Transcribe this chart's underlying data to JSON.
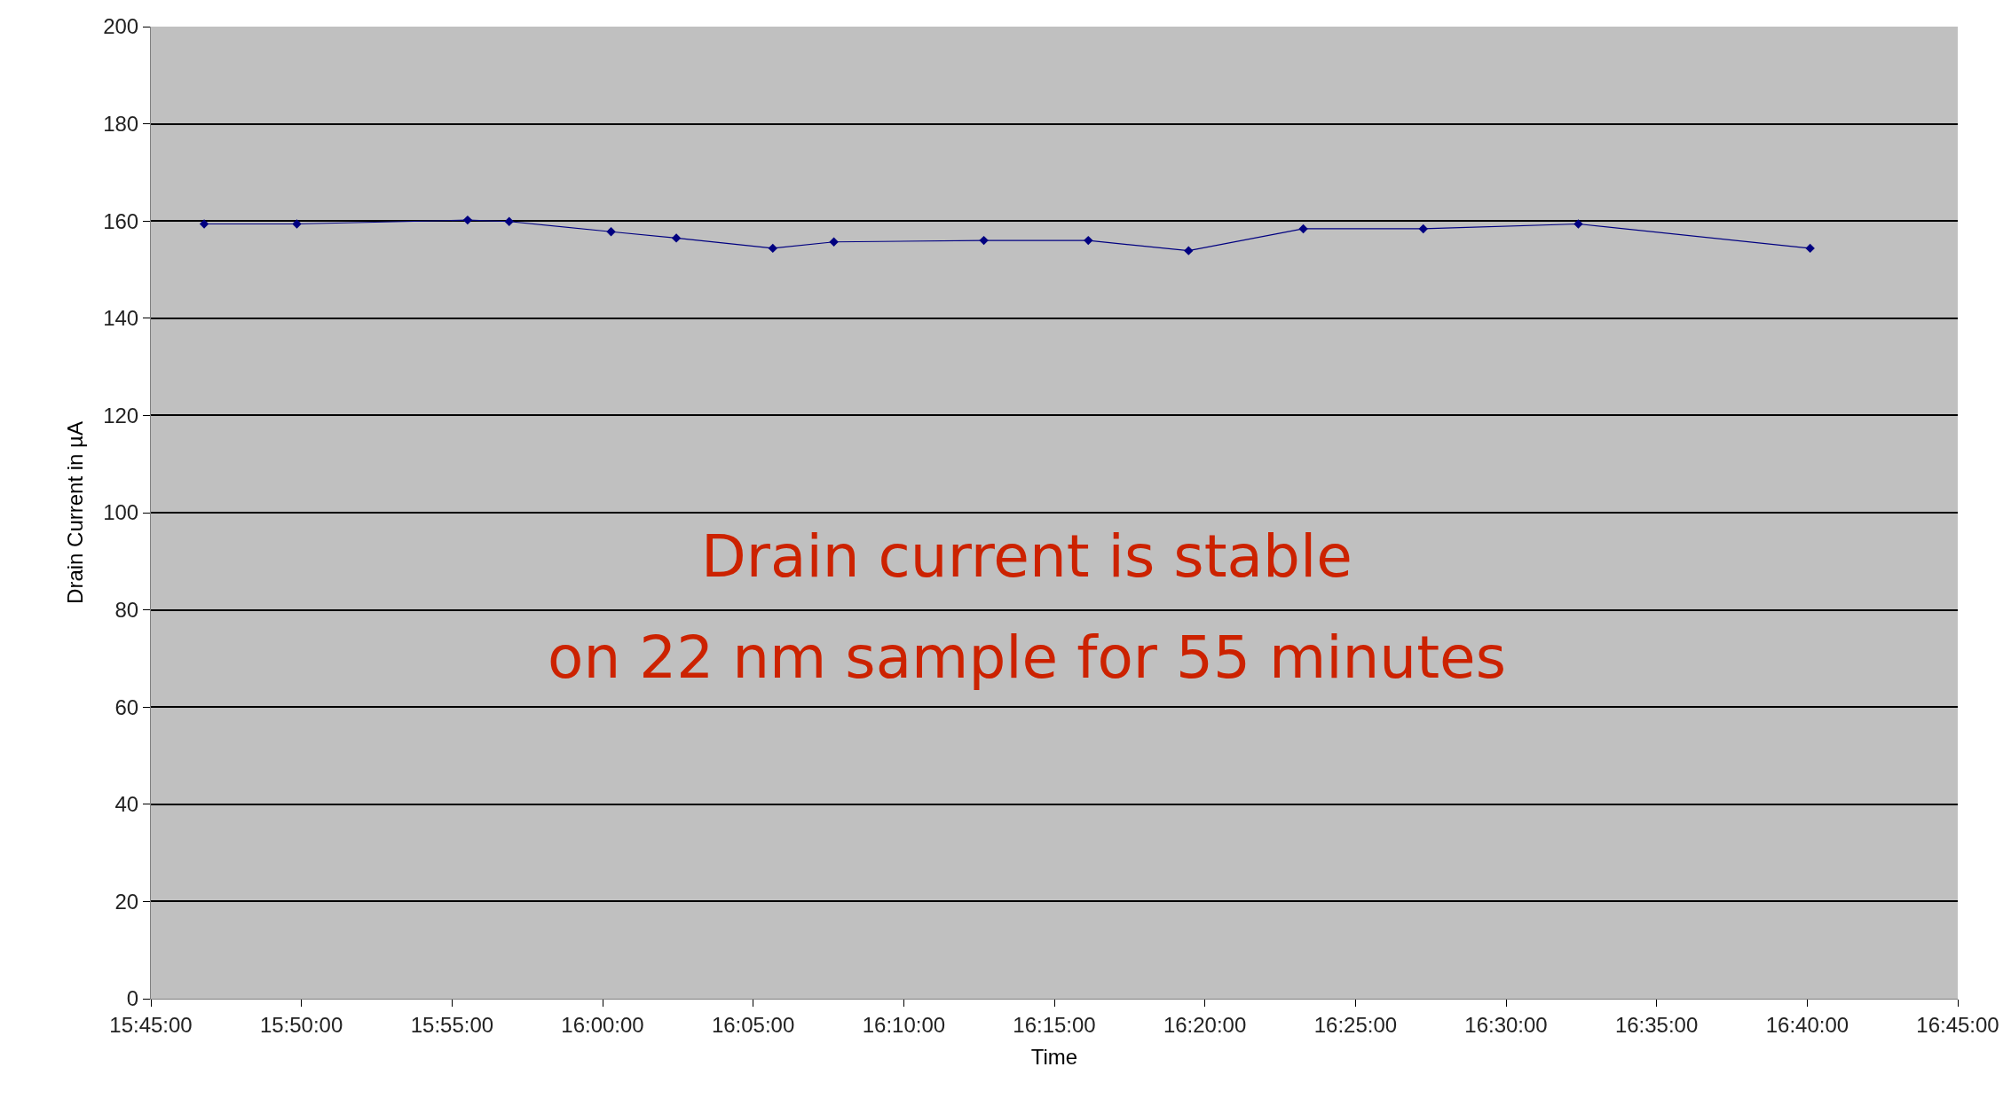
{
  "chart_data": {
    "type": "line",
    "xlabel": "Time",
    "ylabel": "Drain Current in µA",
    "annotations": [
      "Drain current is stable\non 22 nm sample for 55 minutes"
    ],
    "x": [
      15.7795,
      15.8308,
      15.9253,
      15.9483,
      16.0047,
      16.0408,
      16.0942,
      16.128,
      16.211,
      16.2688,
      16.3243,
      16.3878,
      16.4542,
      16.54,
      16.6683
    ],
    "series": [
      {
        "color": "#000080",
        "values": [
          159.4,
          159.4,
          160.2,
          159.9,
          157.8,
          156.5,
          154.4,
          155.7,
          156,
          156,
          153.9,
          158.4,
          158.4,
          159.4,
          154.4
        ]
      }
    ],
    "xlim": [
      15.75,
      16.75
    ],
    "xticks": [
      {
        "value": 15.75,
        "label": "15:45:00"
      },
      {
        "value": 15.8333,
        "label": "15:50:00"
      },
      {
        "value": 15.9167,
        "label": "15:55:00"
      },
      {
        "value": 16.0,
        "label": "16:00:00"
      },
      {
        "value": 16.0833,
        "label": "16:05:00"
      },
      {
        "value": 16.1667,
        "label": "16:10:00"
      },
      {
        "value": 16.25,
        "label": "16:15:00"
      },
      {
        "value": 16.3333,
        "label": "16:20:00"
      },
      {
        "value": 16.4167,
        "label": "16:25:00"
      },
      {
        "value": 16.5,
        "label": "16:30:00"
      },
      {
        "value": 16.5833,
        "label": "16:35:00"
      },
      {
        "value": 16.6667,
        "label": "16:40:00"
      },
      {
        "value": 16.75,
        "label": "16:45:00"
      }
    ],
    "ylim": [
      0,
      200
    ],
    "yticks": [
      0,
      20,
      40,
      60,
      80,
      100,
      120,
      140,
      160,
      180,
      200
    ],
    "grid": "y",
    "marker": "diamond",
    "line_style": "solid"
  }
}
